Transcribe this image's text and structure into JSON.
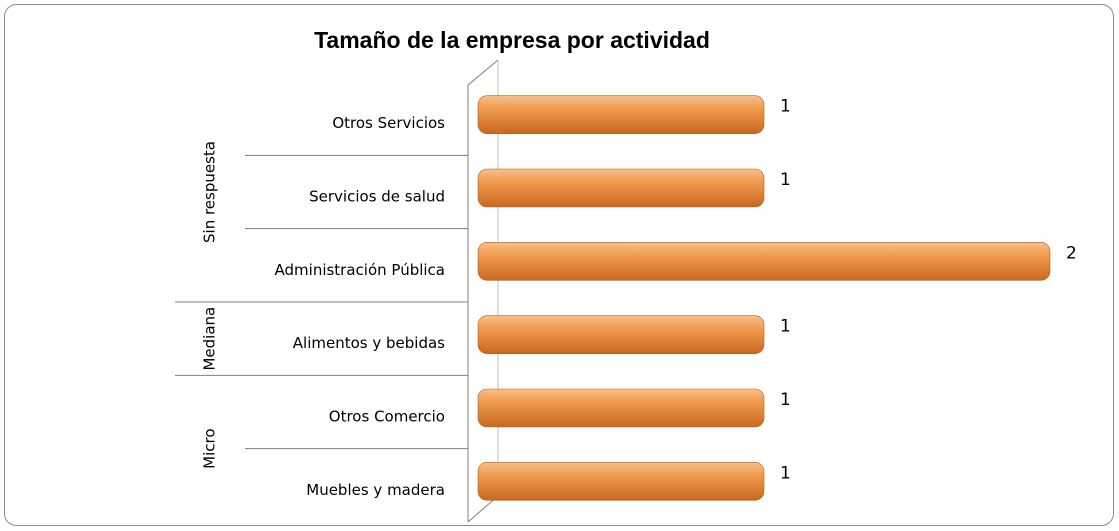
{
  "chart_data": {
    "type": "bar",
    "orientation": "horizontal",
    "title": "Tamaño de la empresa por actividad",
    "categories": [
      "Otros Servicios",
      "Servicios de salud",
      "Administración Pública",
      "Alimentos y bebidas",
      "Otros Comercio",
      "Muebles y madera"
    ],
    "category_groups": [
      "Sin respuesta",
      "Sin respuesta",
      "Sin respuesta",
      "Mediana",
      "Micro",
      "Micro"
    ],
    "values": [
      1,
      1,
      2,
      1,
      1,
      1
    ],
    "color": "#e8893a",
    "xlim": [
      0,
      2
    ]
  }
}
